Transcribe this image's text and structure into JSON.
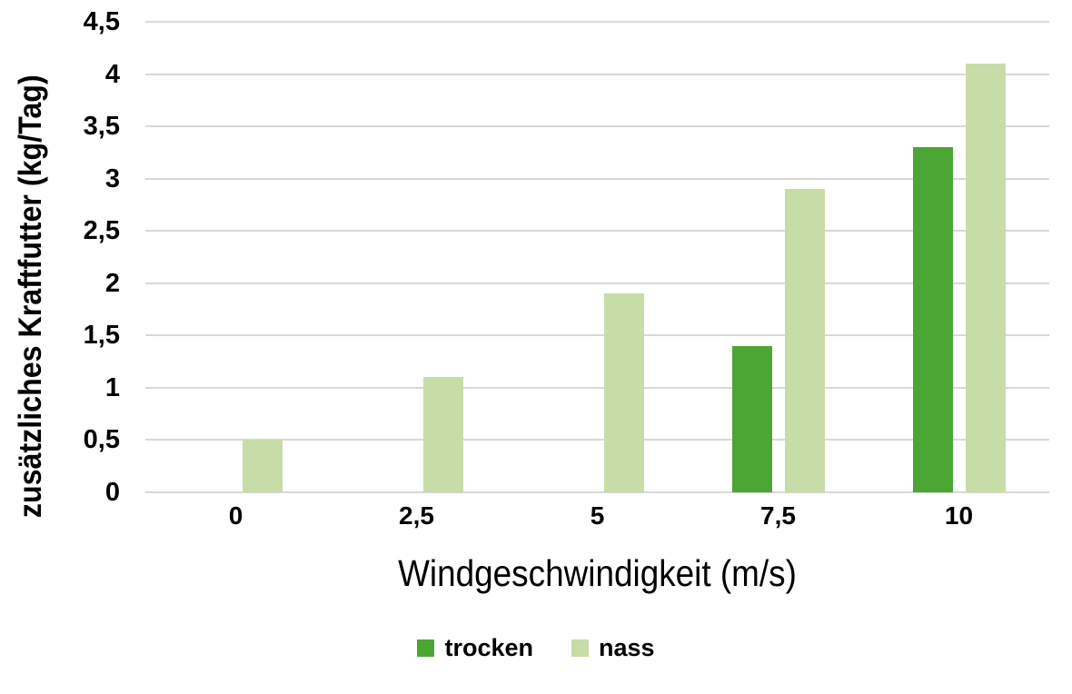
{
  "chart_data": {
    "type": "bar",
    "title": "",
    "categories": [
      "0",
      "2,5",
      "5",
      "7,5",
      "10"
    ],
    "series": [
      {
        "name": "trocken",
        "color": "#4BA634",
        "values": [
          0,
          0,
          0,
          1.4,
          3.3
        ]
      },
      {
        "name": "nass",
        "color": "#C8DCA8",
        "values": [
          0.5,
          1.1,
          1.9,
          2.9,
          4.1
        ]
      }
    ],
    "xlabel": "Windgeschwindigkeit (m/s)",
    "ylabel": "zusätzliches Kraftfutter (kg/Tag)",
    "ylim": [
      0,
      4.5
    ],
    "ytick_step": 0.5,
    "ytick_labels": [
      "0",
      "0,5",
      "1",
      "1,5",
      "2",
      "2,5",
      "3",
      "3,5",
      "4",
      "4,5"
    ],
    "decimal_separator": ",",
    "grid": true,
    "gridline_color": "#D8D8D8",
    "background_color": "#FFFFFF",
    "text_color": "#000000",
    "legend_position": "bottom"
  }
}
